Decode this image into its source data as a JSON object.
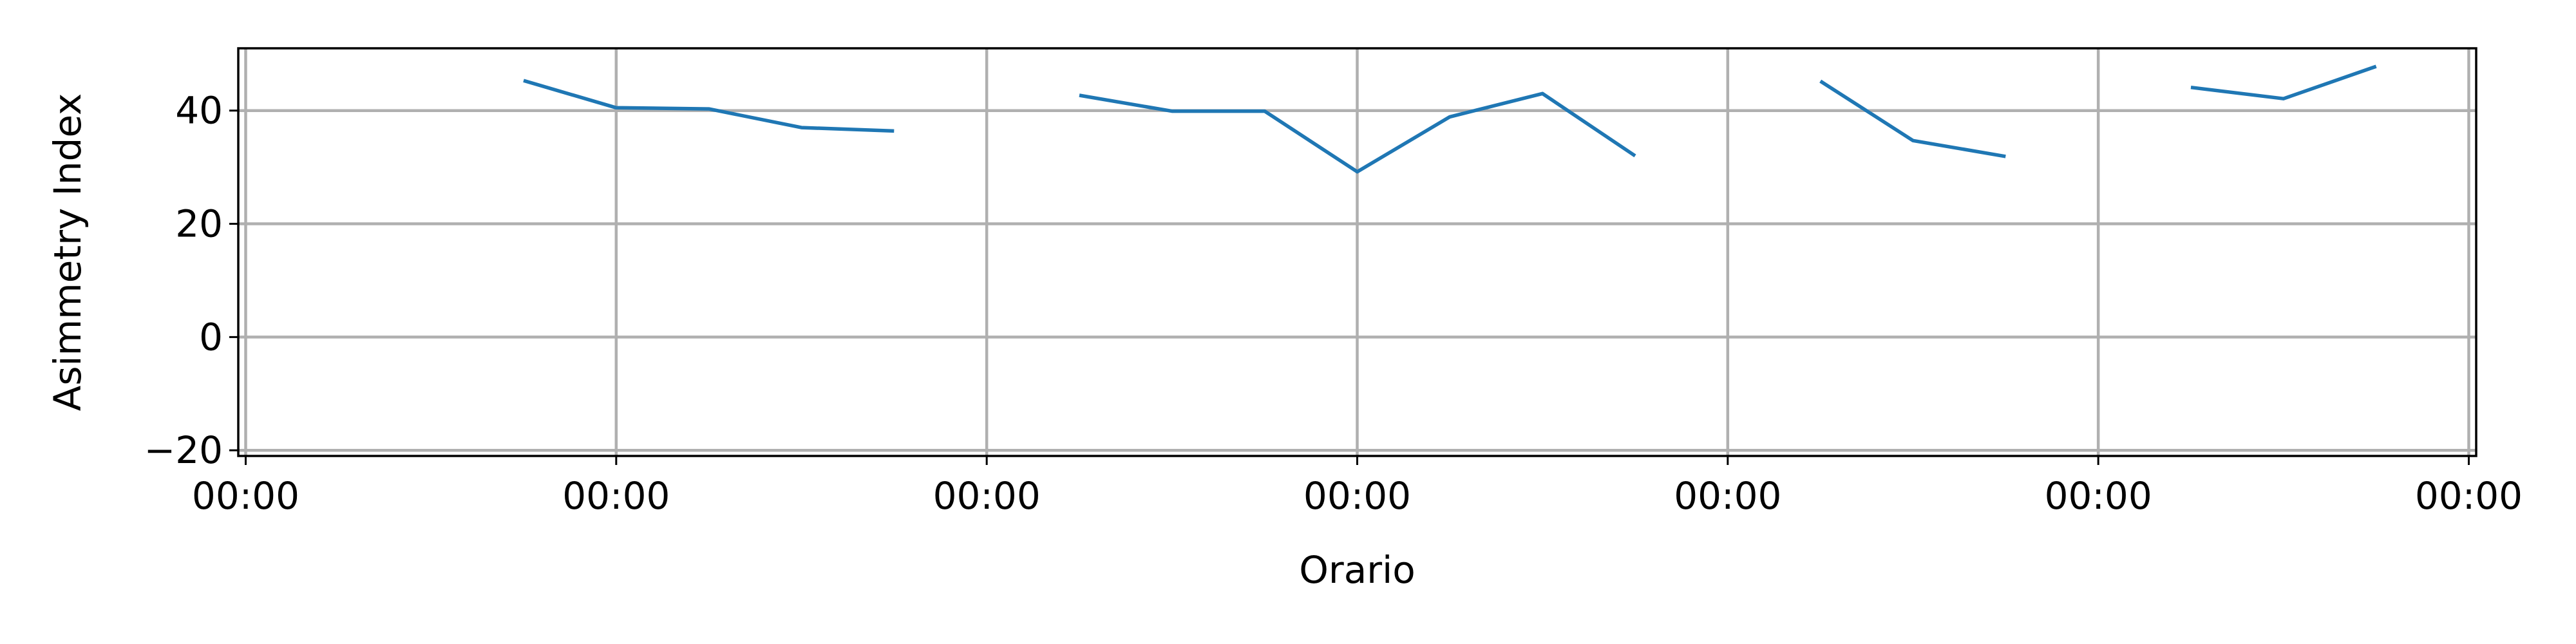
{
  "chart_data": {
    "type": "line",
    "title": "",
    "xlabel": "Orario",
    "ylabel": "Asimmetry Index",
    "ylim": [
      -21,
      51
    ],
    "yticks": [
      -20,
      0,
      20,
      40
    ],
    "xlim": [
      -0.02,
      6.02
    ],
    "xticks": [
      0,
      1,
      2,
      3,
      4,
      5,
      6
    ],
    "xtick_labels": [
      "00:00",
      "00:00",
      "00:00",
      "00:00",
      "00:00",
      "00:00",
      "00:00"
    ],
    "grid": true,
    "legend": "none",
    "color": "#1f77b4",
    "series": [
      {
        "segments": [
          [
            [
              0.75,
              45.3
            ],
            [
              1.0,
              40.5
            ],
            [
              1.25,
              40.3
            ],
            [
              1.5,
              37.0
            ],
            [
              1.75,
              36.4
            ]
          ],
          [
            [
              2.25,
              42.7
            ],
            [
              2.5,
              39.9
            ],
            [
              2.75,
              39.9
            ],
            [
              3.0,
              29.2
            ],
            [
              3.25,
              38.9
            ],
            [
              3.5,
              43.0
            ],
            [
              3.75,
              32.0
            ]
          ],
          [
            [
              4.25,
              45.2
            ],
            [
              4.5,
              34.7
            ],
            [
              4.75,
              31.9
            ]
          ],
          [
            [
              5.25,
              44.1
            ],
            [
              5.5,
              42.1
            ],
            [
              5.75,
              47.8
            ]
          ]
        ]
      }
    ]
  }
}
